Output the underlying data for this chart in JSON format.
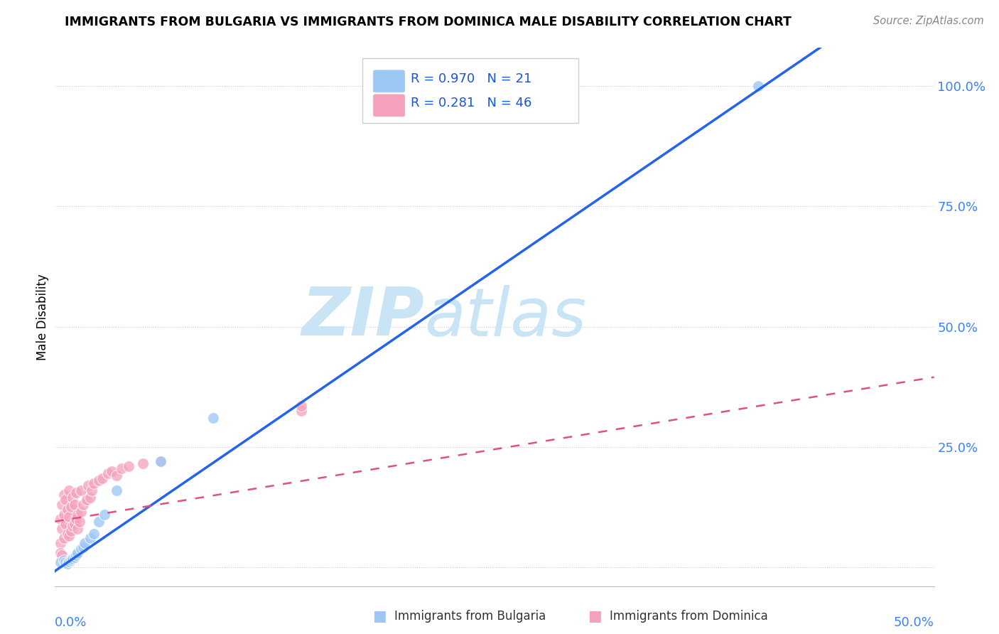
{
  "title": "IMMIGRANTS FROM BULGARIA VS IMMIGRANTS FROM DOMINICA MALE DISABILITY CORRELATION CHART",
  "source": "Source: ZipAtlas.com",
  "ylabel": "Male Disability",
  "ytick_labels": [
    "",
    "25.0%",
    "50.0%",
    "75.0%",
    "100.0%"
  ],
  "xlim": [
    0.0,
    0.5
  ],
  "ylim": [
    -0.04,
    1.08
  ],
  "legend_r1": "R = 0.970",
  "legend_n1": "N = 21",
  "legend_r2": "R = 0.281",
  "legend_n2": "N = 46",
  "color_bulgaria": "#9DC8F5",
  "color_dominica": "#F5A0BC",
  "color_blue_line": "#2563EB",
  "color_pink_line": "#E05080",
  "color_watermark": "#C8E4F5",
  "watermark_text": "ZIPatlas",
  "bulgaria_x": [
    0.003,
    0.005,
    0.006,
    0.007,
    0.008,
    0.009,
    0.01,
    0.011,
    0.012,
    0.013,
    0.015,
    0.016,
    0.017,
    0.02,
    0.022,
    0.025,
    0.028,
    0.035,
    0.06,
    0.09,
    0.4
  ],
  "bulgaria_y": [
    0.01,
    0.015,
    0.01,
    0.008,
    0.012,
    0.015,
    0.018,
    0.02,
    0.025,
    0.03,
    0.038,
    0.042,
    0.05,
    0.06,
    0.07,
    0.095,
    0.11,
    0.16,
    0.22,
    0.31,
    1.0
  ],
  "dominica_x": [
    0.003,
    0.003,
    0.004,
    0.004,
    0.005,
    0.005,
    0.005,
    0.006,
    0.006,
    0.007,
    0.007,
    0.008,
    0.008,
    0.008,
    0.009,
    0.009,
    0.01,
    0.01,
    0.011,
    0.011,
    0.012,
    0.012,
    0.013,
    0.013,
    0.014,
    0.015,
    0.015,
    0.016,
    0.018,
    0.019,
    0.02,
    0.021,
    0.022,
    0.025,
    0.027,
    0.03,
    0.032,
    0.035,
    0.038,
    0.042,
    0.05,
    0.06,
    0.003,
    0.004,
    0.14,
    0.14
  ],
  "dominica_y": [
    0.05,
    0.1,
    0.13,
    0.08,
    0.06,
    0.11,
    0.15,
    0.09,
    0.14,
    0.07,
    0.12,
    0.065,
    0.105,
    0.16,
    0.075,
    0.125,
    0.085,
    0.145,
    0.09,
    0.13,
    0.1,
    0.155,
    0.11,
    0.08,
    0.095,
    0.115,
    0.16,
    0.13,
    0.14,
    0.17,
    0.145,
    0.16,
    0.175,
    0.18,
    0.185,
    0.195,
    0.2,
    0.19,
    0.205,
    0.21,
    0.215,
    0.22,
    0.03,
    0.025,
    0.325,
    0.335
  ],
  "blue_line_slope": 2.5,
  "blue_line_intercept": -0.008,
  "pink_line_slope": 0.6,
  "pink_line_intercept": 0.095
}
